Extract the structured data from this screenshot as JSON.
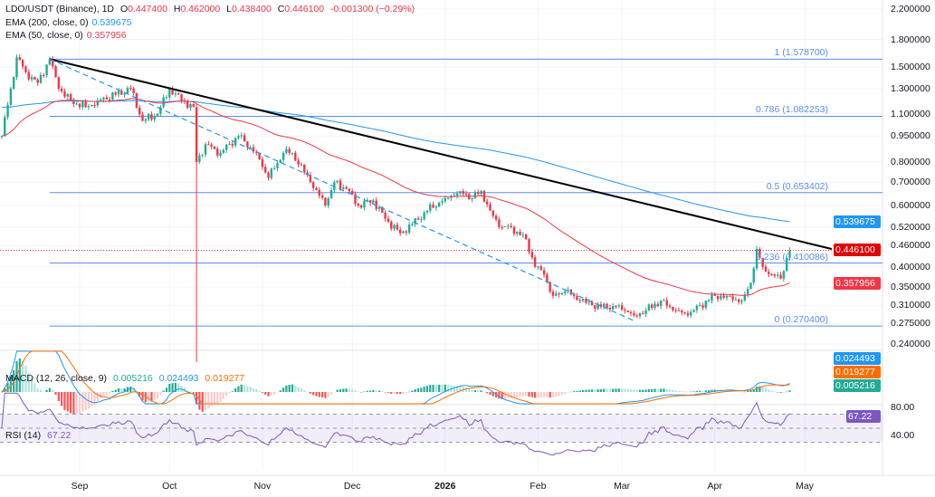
{
  "header": {
    "symbol": "LDO/USDT (Binance), 1D",
    "o_label": "O",
    "o": "0.447400",
    "h_label": "H",
    "h": "0.462000",
    "l_label": "L",
    "l": "0.438400",
    "c_label": "C",
    "c": "0.446100",
    "change": "-0.001300 (−0.29%)",
    "ema200_label": "EMA (200, close, 0)",
    "ema200_value": "0.539675",
    "ema50_label": "EMA (50, close, 0)",
    "ema50_value": "0.357956"
  },
  "macd_legend": {
    "label": "MACD (12, 26, close, 9)",
    "hist": "0.005216",
    "macd": "0.024493",
    "signal": "0.019277"
  },
  "rsi_legend": {
    "label": "RSI (14)",
    "value": "67.22"
  },
  "price_tags": {
    "ema200": "0.539675",
    "last": "0.446100",
    "ema50": "0.357956",
    "macd": "0.024493",
    "signal": "0.019277",
    "hist": "0.005216",
    "rsi": "67.22"
  },
  "colors": {
    "up": "#22ab94",
    "down": "#f23645",
    "ema200": "#2196f3",
    "ema50": "#f23645",
    "macd": "#2196f3",
    "signal": "#ff6d00",
    "rsi": "#7e57c2",
    "fib": "#5b8def",
    "trendline": "#000000"
  },
  "chart_data": {
    "type": "candlestick",
    "scale": "log",
    "ylim": [
      0.24,
      2.2
    ],
    "y_ticks": [
      "2.200000",
      "1.800000",
      "1.500000",
      "1.300000",
      "1.100000",
      "0.950000",
      "0.800000",
      "0.700000",
      "0.600000",
      "0.520000",
      "0.460000",
      "0.400000",
      "0.350000",
      "0.310000",
      "0.275000",
      "0.240000"
    ],
    "x_ticks": [
      {
        "label": "Sep",
        "date": "2025-09-01"
      },
      {
        "label": "Oct",
        "date": "2025-10-01"
      },
      {
        "label": "Nov",
        "date": "2025-11-01"
      },
      {
        "label": "Dec",
        "date": "2025-12-01"
      },
      {
        "label": "2026",
        "date": "2026-01-01",
        "bold": true
      },
      {
        "label": "Feb",
        "date": "2026-02-01"
      },
      {
        "label": "Mar",
        "date": "2026-03-01"
      },
      {
        "label": "Apr",
        "date": "2026-04-01"
      },
      {
        "label": "May",
        "date": "2026-05-01"
      }
    ],
    "closes": [
      [
        "2025-08-06",
        0.95
      ],
      [
        "2025-08-09",
        1.3
      ],
      [
        "2025-08-11",
        1.6
      ],
      [
        "2025-08-14",
        1.45
      ],
      [
        "2025-08-18",
        1.35
      ],
      [
        "2025-08-22",
        1.58
      ],
      [
        "2025-08-25",
        1.3
      ],
      [
        "2025-08-29",
        1.2
      ],
      [
        "2025-09-03",
        1.15
      ],
      [
        "2025-09-07",
        1.2
      ],
      [
        "2025-09-13",
        1.25
      ],
      [
        "2025-09-18",
        1.3
      ],
      [
        "2025-09-22",
        1.05
      ],
      [
        "2025-09-27",
        1.1
      ],
      [
        "2025-10-01",
        1.3
      ],
      [
        "2025-10-05",
        1.2
      ],
      [
        "2025-10-09",
        1.15
      ],
      [
        "2025-10-10",
        0.8
      ],
      [
        "2025-10-13",
        0.9
      ],
      [
        "2025-10-18",
        0.85
      ],
      [
        "2025-10-24",
        0.95
      ],
      [
        "2025-10-30",
        0.85
      ],
      [
        "2025-11-03",
        0.72
      ],
      [
        "2025-11-08",
        0.85
      ],
      [
        "2025-11-11",
        0.85
      ],
      [
        "2025-11-17",
        0.7
      ],
      [
        "2025-11-22",
        0.6
      ],
      [
        "2025-11-25",
        0.7
      ],
      [
        "2025-11-29",
        0.67
      ],
      [
        "2025-12-03",
        0.6
      ],
      [
        "2025-12-08",
        0.62
      ],
      [
        "2025-12-12",
        0.55
      ],
      [
        "2025-12-17",
        0.5
      ],
      [
        "2025-12-21",
        0.53
      ],
      [
        "2025-12-26",
        0.58
      ],
      [
        "2026-01-01",
        0.63
      ],
      [
        "2026-01-06",
        0.66
      ],
      [
        "2026-01-10",
        0.63
      ],
      [
        "2026-01-13",
        0.66
      ],
      [
        "2026-01-16",
        0.58
      ],
      [
        "2026-01-19",
        0.52
      ],
      [
        "2026-01-23",
        0.52
      ],
      [
        "2026-01-28",
        0.48
      ],
      [
        "2026-01-31",
        0.4
      ],
      [
        "2026-02-03",
        0.38
      ],
      [
        "2026-02-06",
        0.33
      ],
      [
        "2026-02-10",
        0.34
      ],
      [
        "2026-02-15",
        0.32
      ],
      [
        "2026-02-19",
        0.31
      ],
      [
        "2026-02-24",
        0.305
      ],
      [
        "2026-02-28",
        0.31
      ],
      [
        "2026-03-05",
        0.29
      ],
      [
        "2026-03-09",
        0.3
      ],
      [
        "2026-03-14",
        0.32
      ],
      [
        "2026-03-18",
        0.3
      ],
      [
        "2026-03-23",
        0.29
      ],
      [
        "2026-03-27",
        0.31
      ],
      [
        "2026-04-01",
        0.33
      ],
      [
        "2026-04-05",
        0.33
      ],
      [
        "2026-04-10",
        0.32
      ],
      [
        "2026-04-13",
        0.36
      ],
      [
        "2026-04-15",
        0.45
      ],
      [
        "2026-04-17",
        0.4
      ],
      [
        "2026-04-20",
        0.38
      ],
      [
        "2026-04-23",
        0.37
      ],
      [
        "2026-04-26",
        0.4461
      ]
    ],
    "crash_wick": {
      "date": "2025-10-10",
      "low": 0.2
    },
    "fib_levels": [
      {
        "label": "1 (1.578700)",
        "price": 1.5787
      },
      {
        "label": "0.786 (1.082253)",
        "price": 1.082253
      },
      {
        "label": "0.5 (0.653402)",
        "price": 0.653402
      },
      {
        "label": "0.236 (0.410086)",
        "price": 0.410086
      },
      {
        "label": "0 (0.270400)",
        "price": 0.2704
      }
    ],
    "trendlines": [
      {
        "kind": "solid",
        "from": [
          "2025-08-22",
          1.58
        ],
        "to": [
          "2026-05-10",
          0.45
        ]
      },
      {
        "kind": "dashed",
        "from": [
          "2025-08-22",
          1.58
        ],
        "to": [
          "2026-03-05",
          0.28
        ]
      }
    ],
    "rsi_ticks": [
      "80.00",
      "40.00"
    ],
    "rsi_bands": [
      70,
      50,
      30
    ]
  }
}
